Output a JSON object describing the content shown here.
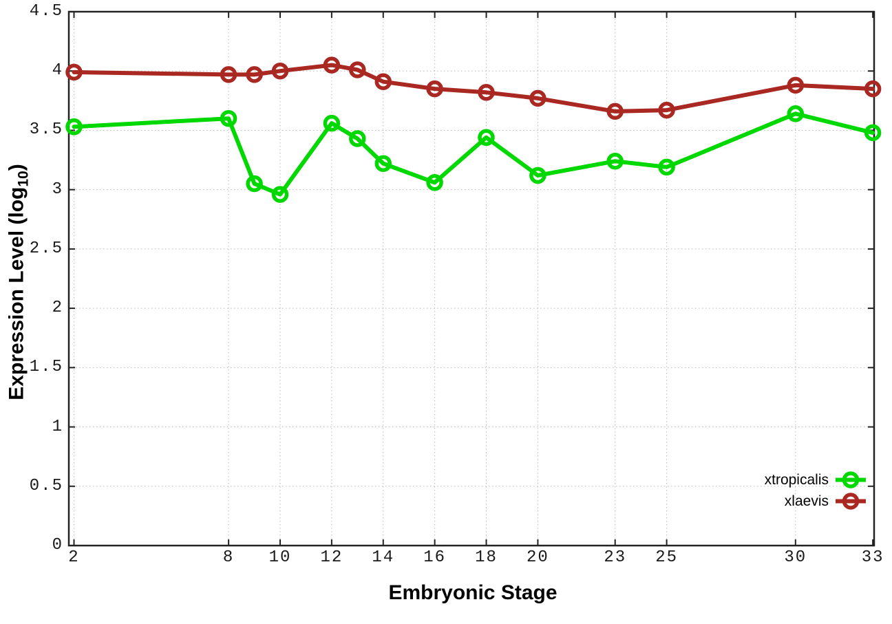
{
  "chart_data": {
    "type": "line",
    "title": "",
    "xlabel": "Embryonic Stage",
    "ylabel": "Expression Level (log10)",
    "ylabel_prefix": "Expression Level (log",
    "ylabel_sub": "10",
    "ylabel_suffix": ")",
    "x": [
      2,
      8,
      9,
      10,
      12,
      13,
      14,
      16,
      18,
      20,
      23,
      25,
      30,
      33
    ],
    "series": [
      {
        "name": "xtropicalis",
        "color": "#00d800",
        "values": [
          3.53,
          3.6,
          3.05,
          2.96,
          3.56,
          3.43,
          3.22,
          3.06,
          3.44,
          3.12,
          3.24,
          3.19,
          3.64,
          3.48
        ]
      },
      {
        "name": "xlaevis",
        "color": "#aa2822",
        "values": [
          3.99,
          3.97,
          3.97,
          4.0,
          4.05,
          4.01,
          3.91,
          3.85,
          3.82,
          3.77,
          3.66,
          3.67,
          3.88,
          3.85
        ]
      }
    ],
    "xticks": {
      "values": [
        2,
        8,
        10,
        12,
        14,
        16,
        18,
        20,
        23,
        25,
        30,
        33
      ],
      "labels": [
        "2",
        "8",
        "10",
        "12",
        "14",
        "16",
        "18",
        "20",
        "23",
        "25",
        "30",
        "33"
      ]
    },
    "yticks": {
      "values": [
        0,
        0.5,
        1,
        1.5,
        2,
        2.5,
        3,
        3.5,
        4,
        4.5
      ],
      "labels": [
        "0",
        "0.5",
        "1",
        "1.5",
        "2",
        "2.5",
        "3",
        "3.5",
        "4",
        "4.5"
      ]
    },
    "xlim": [
      1.8,
      33.05
    ],
    "ylim": [
      0,
      4.5
    ],
    "grid": true,
    "legend_position": "bottom-right",
    "legend": [
      "xtropicalis",
      "xlaevis"
    ],
    "colors": {
      "axis": "#222222",
      "grid": "#b9b9b9",
      "background": "#ffffff",
      "xtropicalis": "#00d800",
      "xlaevis": "#aa2822"
    }
  }
}
